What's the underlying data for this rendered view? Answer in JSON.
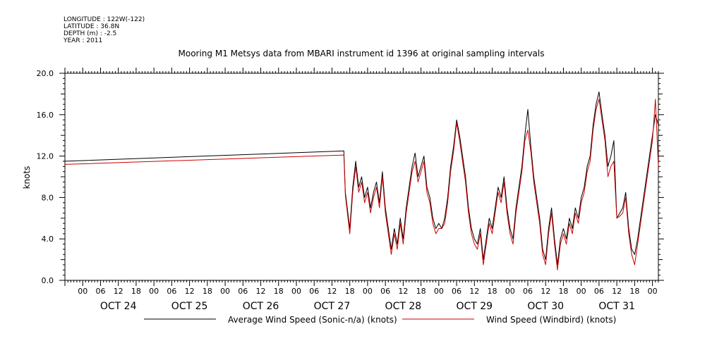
{
  "header": {
    "longitude": "LONGITUDE : 122W(-122)",
    "latitude": "LATITUDE : 36.8N",
    "depth": "DEPTH (m) : -2.5",
    "year": "YEAR : 2011"
  },
  "chart_data": {
    "type": "line",
    "title": "Mooring M1 Metsys data from MBARI instrument id 1396 at original sampling intervals",
    "xlabel": "",
    "ylabel": "knots",
    "ylim": [
      0,
      20
    ],
    "y_ticks": [
      "0.0",
      "4.0",
      "8.0",
      "12.0",
      "16.0",
      "20.0"
    ],
    "xlim_hours": [
      -6,
      194
    ],
    "x_hour_labels": [
      "00",
      "06",
      "12",
      "18",
      "00",
      "06",
      "12",
      "18",
      "00",
      "06",
      "12",
      "18",
      "00",
      "06",
      "12",
      "18",
      "00",
      "06",
      "12",
      "18",
      "00",
      "06",
      "12",
      "18",
      "00",
      "06",
      "12",
      "18",
      "00",
      "06",
      "12",
      "18",
      "00"
    ],
    "day_labels": [
      "OCT 24",
      "OCT 25",
      "OCT 26",
      "OCT 27",
      "OCT 28",
      "OCT 29",
      "OCT 30",
      "OCT 31"
    ],
    "grid": false,
    "legend_position": "bottom",
    "series": [
      {
        "name": "Average Wind Speed (Sonic-n/a) (knots)",
        "color": "#000000",
        "points": [
          [
            -6,
            11.5
          ],
          [
            88,
            12.5
          ],
          [
            88.5,
            8.5
          ],
          [
            90,
            5
          ],
          [
            91,
            9
          ],
          [
            92,
            11.5
          ],
          [
            93,
            9
          ],
          [
            94,
            10
          ],
          [
            95,
            8
          ],
          [
            96,
            9
          ],
          [
            97,
            7
          ],
          [
            98,
            8.5
          ],
          [
            99,
            9.5
          ],
          [
            100,
            7.5
          ],
          [
            101,
            10.5
          ],
          [
            102,
            7
          ],
          [
            103,
            5
          ],
          [
            104,
            3
          ],
          [
            105,
            5
          ],
          [
            106,
            3.5
          ],
          [
            107,
            6
          ],
          [
            108,
            4
          ],
          [
            109,
            7
          ],
          [
            110,
            9
          ],
          [
            111,
            11
          ],
          [
            112,
            12.3
          ],
          [
            113,
            10
          ],
          [
            114,
            11
          ],
          [
            115,
            12
          ],
          [
            116,
            9
          ],
          [
            117,
            8
          ],
          [
            118,
            6
          ],
          [
            119,
            5
          ],
          [
            120,
            5.5
          ],
          [
            121,
            5
          ],
          [
            122,
            6
          ],
          [
            123,
            8
          ],
          [
            124,
            11
          ],
          [
            125,
            13
          ],
          [
            126,
            15.5
          ],
          [
            127,
            14
          ],
          [
            128,
            12
          ],
          [
            129,
            10
          ],
          [
            130,
            7
          ],
          [
            131,
            5
          ],
          [
            132,
            4
          ],
          [
            133,
            3.5
          ],
          [
            134,
            5
          ],
          [
            135,
            2
          ],
          [
            136,
            4
          ],
          [
            137,
            6
          ],
          [
            138,
            5
          ],
          [
            139,
            7
          ],
          [
            140,
            9
          ],
          [
            141,
            8
          ],
          [
            142,
            10
          ],
          [
            143,
            7
          ],
          [
            144,
            5
          ],
          [
            145,
            4
          ],
          [
            146,
            7
          ],
          [
            147,
            9
          ],
          [
            148,
            11
          ],
          [
            149,
            14
          ],
          [
            150,
            16.5
          ],
          [
            151,
            13
          ],
          [
            152,
            10
          ],
          [
            153,
            8
          ],
          [
            154,
            6
          ],
          [
            155,
            3
          ],
          [
            156,
            2
          ],
          [
            157,
            5
          ],
          [
            158,
            7
          ],
          [
            159,
            4
          ],
          [
            160,
            1.5
          ],
          [
            161,
            4
          ],
          [
            162,
            5
          ],
          [
            163,
            4
          ],
          [
            164,
            6
          ],
          [
            165,
            5
          ],
          [
            166,
            7
          ],
          [
            167,
            6
          ],
          [
            168,
            8
          ],
          [
            169,
            9
          ],
          [
            170,
            11
          ],
          [
            171,
            12
          ],
          [
            172,
            15
          ],
          [
            173,
            17
          ],
          [
            174,
            18.2
          ],
          [
            175,
            16
          ],
          [
            176,
            14
          ],
          [
            177,
            11
          ],
          [
            178,
            12
          ],
          [
            179,
            13.5
          ],
          [
            180,
            6
          ],
          [
            181,
            6.5
          ],
          [
            182,
            7
          ],
          [
            183,
            8.5
          ],
          [
            184,
            5
          ],
          [
            185,
            3
          ],
          [
            186,
            2.5
          ],
          [
            187,
            4
          ],
          [
            188,
            6
          ],
          [
            189,
            8
          ],
          [
            190,
            10
          ],
          [
            191,
            12
          ],
          [
            192,
            14
          ],
          [
            193,
            16
          ],
          [
            194,
            15
          ]
        ]
      },
      {
        "name": "Wind Speed (Windbird) (knots)",
        "color": "#cc0000",
        "points": [
          [
            -6,
            11.2
          ],
          [
            88,
            12.1
          ],
          [
            88.5,
            8.2
          ],
          [
            90,
            4.5
          ],
          [
            91,
            8.5
          ],
          [
            92,
            11
          ],
          [
            93,
            8.5
          ],
          [
            94,
            9.5
          ],
          [
            95,
            7.5
          ],
          [
            96,
            8.5
          ],
          [
            97,
            6.5
          ],
          [
            98,
            8
          ],
          [
            99,
            9
          ],
          [
            100,
            7
          ],
          [
            101,
            10
          ],
          [
            102,
            6.5
          ],
          [
            103,
            4.5
          ],
          [
            104,
            2.5
          ],
          [
            105,
            4.5
          ],
          [
            106,
            3
          ],
          [
            107,
            5.5
          ],
          [
            108,
            3.5
          ],
          [
            109,
            6.5
          ],
          [
            110,
            8.5
          ],
          [
            111,
            10.5
          ],
          [
            112,
            11.5
          ],
          [
            113,
            9.5
          ],
          [
            114,
            10.5
          ],
          [
            115,
            11.5
          ],
          [
            116,
            8.5
          ],
          [
            117,
            7.5
          ],
          [
            118,
            5.5
          ],
          [
            119,
            4.5
          ],
          [
            120,
            5
          ],
          [
            121,
            5
          ],
          [
            122,
            5.5
          ],
          [
            123,
            7.5
          ],
          [
            124,
            10.5
          ],
          [
            125,
            12.5
          ],
          [
            126,
            15.2
          ],
          [
            127,
            13.5
          ],
          [
            128,
            11.5
          ],
          [
            129,
            9.5
          ],
          [
            130,
            6.5
          ],
          [
            131,
            4.5
          ],
          [
            132,
            3.5
          ],
          [
            133,
            3
          ],
          [
            134,
            4.5
          ],
          [
            135,
            1.5
          ],
          [
            136,
            3.5
          ],
          [
            137,
            5.5
          ],
          [
            138,
            4.5
          ],
          [
            139,
            6.5
          ],
          [
            140,
            8.5
          ],
          [
            141,
            7.5
          ],
          [
            142,
            9.5
          ],
          [
            143,
            6.5
          ],
          [
            144,
            4.5
          ],
          [
            145,
            3.5
          ],
          [
            146,
            6.5
          ],
          [
            147,
            8.5
          ],
          [
            148,
            10.5
          ],
          [
            149,
            13.5
          ],
          [
            150,
            14.5
          ],
          [
            151,
            12.5
          ],
          [
            152,
            9.5
          ],
          [
            153,
            7.5
          ],
          [
            154,
            5.5
          ],
          [
            155,
            2.5
          ],
          [
            156,
            1.5
          ],
          [
            157,
            4.5
          ],
          [
            158,
            6.5
          ],
          [
            159,
            3.5
          ],
          [
            160,
            1
          ],
          [
            161,
            3.5
          ],
          [
            162,
            4.5
          ],
          [
            163,
            3.5
          ],
          [
            164,
            5.5
          ],
          [
            165,
            4.5
          ],
          [
            166,
            6.5
          ],
          [
            167,
            5.5
          ],
          [
            168,
            7.5
          ],
          [
            169,
            8.5
          ],
          [
            170,
            10.5
          ],
          [
            171,
            11.5
          ],
          [
            172,
            14.5
          ],
          [
            173,
            16.5
          ],
          [
            174,
            17.5
          ],
          [
            175,
            15.5
          ],
          [
            176,
            13.5
          ],
          [
            177,
            10
          ],
          [
            178,
            11
          ],
          [
            179,
            11.5
          ],
          [
            180,
            6
          ],
          [
            181,
            6.2
          ],
          [
            182,
            6.5
          ],
          [
            183,
            8
          ],
          [
            184,
            4.5
          ],
          [
            185,
            2.5
          ],
          [
            186,
            1.5
          ],
          [
            187,
            3.5
          ],
          [
            188,
            5.5
          ],
          [
            189,
            7.5
          ],
          [
            190,
            9.5
          ],
          [
            191,
            11.5
          ],
          [
            192,
            13.5
          ],
          [
            193,
            17.5
          ],
          [
            194,
            11
          ]
        ]
      }
    ]
  }
}
